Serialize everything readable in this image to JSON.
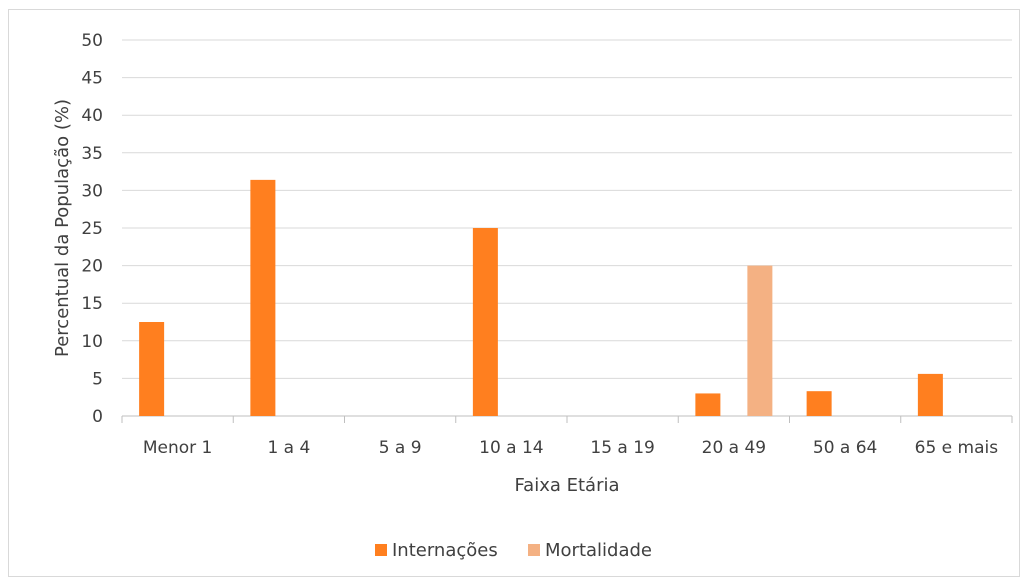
{
  "chart_data": {
    "type": "bar",
    "categories": [
      "Menor 1",
      "1 a 4",
      "5 a 9",
      "10 a 14",
      "15 a 19",
      "20 a 49",
      "50 a 64",
      "65 e mais"
    ],
    "series": [
      {
        "name": "Internações",
        "color": "#ff7f1f",
        "values": [
          12.5,
          31.4,
          0,
          25.0,
          0,
          3.0,
          3.3,
          5.6
        ]
      },
      {
        "name": "Mortalidade",
        "color": "#f4b183",
        "values": [
          0,
          0,
          0,
          0,
          0,
          20.0,
          0,
          0
        ]
      }
    ],
    "xlabel": "Faixa Etária",
    "ylabel": "Percentual da População  (%)",
    "ylim": [
      0,
      50
    ],
    "yticks": [
      "0",
      "5",
      "10",
      "15",
      "20",
      "25",
      "30",
      "35",
      "40",
      "45",
      "50"
    ],
    "grid": true,
    "legend_position": "bottom"
  }
}
